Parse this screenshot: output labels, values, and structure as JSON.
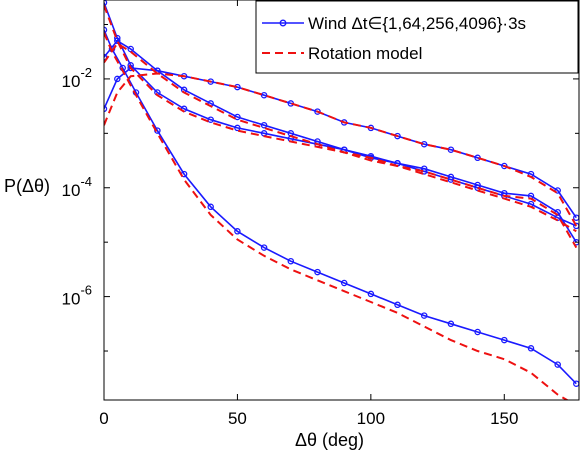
{
  "chart_data": {
    "type": "line",
    "title": "",
    "xlabel": "Δθ (deg)",
    "ylabel": "P(Δθ)",
    "xlim": [
      0,
      178
    ],
    "ylim_log10": [
      -7.9,
      -0.55
    ],
    "yscale": "log",
    "x_ticks": [
      0,
      50,
      100,
      150
    ],
    "y_ticks": [
      {
        "base": "10",
        "exp": "-2",
        "value": 0.01
      },
      {
        "base": "10",
        "exp": "-4",
        "value": 0.0001
      },
      {
        "base": "10",
        "exp": "-6",
        "value": 1e-06
      }
    ],
    "grid": false,
    "legend": {
      "position": "top-right",
      "entries": [
        {
          "label": "Wind Δt∈{1,64,256,4096}·3s",
          "color": "#1a1aff",
          "style": "solid-circle"
        },
        {
          "label": "Rotation model",
          "color": "#ee1111",
          "style": "dashed"
        }
      ]
    },
    "series": [
      {
        "group": "wind",
        "color": "#1a1aff",
        "x": [
          0,
          5,
          10,
          20,
          30,
          40,
          50,
          60,
          70,
          80,
          90,
          100,
          110,
          120,
          130,
          140,
          150,
          160,
          170,
          177
        ],
        "log10y": [
          -0.6,
          -1.25,
          -1.75,
          -2.25,
          -2.55,
          -2.75,
          -2.9,
          -3.0,
          -3.1,
          -3.2,
          -3.3,
          -3.42,
          -3.55,
          -3.7,
          -3.85,
          -4.0,
          -4.15,
          -4.3,
          -4.55,
          -4.7
        ]
      },
      {
        "group": "wind",
        "color": "#1a1aff",
        "x": [
          0,
          5,
          10,
          20,
          30,
          40,
          50,
          60,
          70,
          80,
          90,
          100,
          110,
          120,
          130,
          140,
          150,
          160,
          170,
          177
        ],
        "log10y": [
          -1.6,
          -1.3,
          -1.45,
          -1.85,
          -2.2,
          -2.45,
          -2.7,
          -2.85,
          -3.0,
          -3.15,
          -3.3,
          -3.45,
          -3.55,
          -3.65,
          -3.8,
          -3.95,
          -4.1,
          -4.15,
          -4.45,
          -5.0
        ]
      },
      {
        "group": "wind",
        "color": "#1a1aff",
        "x": [
          0,
          5,
          10,
          20,
          30,
          40,
          50,
          60,
          70,
          80,
          90,
          100,
          110,
          120,
          130,
          140,
          150,
          160,
          170,
          177
        ],
        "log10y": [
          -2.55,
          -2.0,
          -1.8,
          -1.85,
          -1.95,
          -2.05,
          -2.15,
          -2.3,
          -2.45,
          -2.6,
          -2.8,
          -2.9,
          -3.05,
          -3.2,
          -3.3,
          -3.45,
          -3.6,
          -3.75,
          -4.05,
          -4.55
        ]
      },
      {
        "group": "wind",
        "color": "#1a1aff",
        "x": [
          0,
          3,
          7,
          12,
          20,
          30,
          40,
          50,
          60,
          70,
          80,
          90,
          100,
          110,
          120,
          130,
          140,
          150,
          160,
          170,
          177
        ],
        "log10y": [
          -1.1,
          -1.45,
          -1.8,
          -2.25,
          -2.95,
          -3.75,
          -4.35,
          -4.8,
          -5.1,
          -5.35,
          -5.55,
          -5.75,
          -5.95,
          -6.15,
          -6.35,
          -6.5,
          -6.65,
          -6.8,
          -6.95,
          -7.25,
          -7.6
        ]
      },
      {
        "group": "model",
        "color": "#ee1111",
        "x": [
          0,
          5,
          10,
          20,
          30,
          40,
          50,
          60,
          70,
          80,
          90,
          100,
          110,
          120,
          130,
          140,
          150,
          160,
          170,
          177
        ],
        "log10y": [
          -2.85,
          -2.25,
          -1.95,
          -1.9,
          -1.95,
          -2.05,
          -2.15,
          -2.3,
          -2.45,
          -2.6,
          -2.8,
          -2.9,
          -3.05,
          -3.2,
          -3.3,
          -3.45,
          -3.6,
          -3.8,
          -4.1,
          -4.7
        ]
      },
      {
        "group": "model",
        "color": "#ee1111",
        "x": [
          0,
          5,
          10,
          20,
          30,
          40,
          50,
          60,
          70,
          80,
          90,
          100,
          110,
          120,
          130,
          140,
          150,
          160,
          170,
          177
        ],
        "log10y": [
          -1.7,
          -1.35,
          -1.5,
          -1.9,
          -2.25,
          -2.5,
          -2.75,
          -2.9,
          -3.05,
          -3.2,
          -3.35,
          -3.5,
          -3.6,
          -3.7,
          -3.85,
          -4.0,
          -4.15,
          -4.2,
          -4.5,
          -5.1
        ]
      },
      {
        "group": "model",
        "color": "#ee1111",
        "x": [
          0,
          5,
          10,
          20,
          30,
          40,
          50,
          60,
          70,
          80,
          90,
          100,
          110,
          120,
          130,
          140,
          150,
          160,
          170,
          177
        ],
        "log10y": [
          -0.65,
          -1.3,
          -1.8,
          -2.3,
          -2.6,
          -2.8,
          -2.95,
          -3.05,
          -3.15,
          -3.25,
          -3.35,
          -3.45,
          -3.6,
          -3.75,
          -3.9,
          -4.05,
          -4.2,
          -4.35,
          -4.6,
          -4.8
        ]
      },
      {
        "group": "model",
        "color": "#ee1111",
        "x": [
          0,
          3,
          7,
          12,
          20,
          30,
          40,
          50,
          60,
          70,
          80,
          90,
          100,
          110,
          120,
          130,
          140,
          150,
          160,
          170,
          177
        ],
        "log10y": [
          -1.15,
          -1.5,
          -1.85,
          -2.3,
          -3.0,
          -3.85,
          -4.5,
          -4.95,
          -5.25,
          -5.5,
          -5.7,
          -5.9,
          -6.1,
          -6.3,
          -6.55,
          -6.8,
          -7.0,
          -7.15,
          -7.4,
          -7.8,
          -8.0
        ]
      }
    ]
  }
}
